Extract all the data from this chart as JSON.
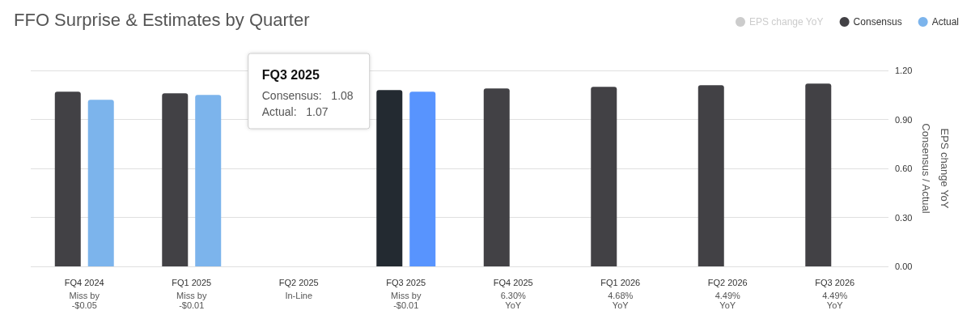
{
  "chart_data": {
    "type": "bar",
    "title": "FFO Surprise & Estimates by Quarter",
    "ylabel": "Consensus / Actual",
    "y2label": "EPS change YoY",
    "categories": [
      "FQ4 2024",
      "FQ1 2025",
      "FQ2 2025",
      "FQ3 2025",
      "FQ4 2025",
      "FQ1 2026",
      "FQ2 2026",
      "FQ3 2026"
    ],
    "series": [
      {
        "name": "EPS change YoY",
        "color": "#cccccc",
        "values": [
          null,
          null,
          null,
          null,
          null,
          null,
          null,
          null
        ]
      },
      {
        "name": "Consensus",
        "color": "#424145",
        "colors": [
          "#424145",
          "#424145",
          "#424145",
          "#232a31",
          "#424145",
          "#424145",
          "#424145",
          "#424145"
        ],
        "values": [
          1.07,
          1.06,
          null,
          1.08,
          1.09,
          1.1,
          1.11,
          1.12
        ]
      },
      {
        "name": "Actual",
        "color": "#7cb4ec",
        "colors": [
          "#7cb4ec",
          "#7cb4ec",
          "#7cb4ec",
          "#5894fe",
          null,
          null,
          null,
          null
        ],
        "values": [
          1.02,
          1.05,
          null,
          1.07,
          null,
          null,
          null,
          null
        ]
      }
    ],
    "ylim": [
      0,
      1.2
    ],
    "yticks": [
      {
        "value": 0,
        "label": "0.00"
      },
      {
        "value": 0.3,
        "label": "0.30"
      },
      {
        "value": 0.6,
        "label": "0.60"
      },
      {
        "value": 0.9,
        "label": "0.90"
      },
      {
        "value": 1.2,
        "label": "1.20"
      }
    ],
    "grid": "y",
    "legend": "top right",
    "annotations": [
      "FQ3 2025\nConsensus:   1.08\nActual:   1.07",
      "Miss by\n-$0.05",
      "Miss by\n-$0.01",
      "In-Line",
      "Miss by\n-$0.01",
      "6.30%\nYoY",
      "4.68%\nYoY",
      "4.49%\nYoY",
      "4.49%\nYoY"
    ]
  }
}
